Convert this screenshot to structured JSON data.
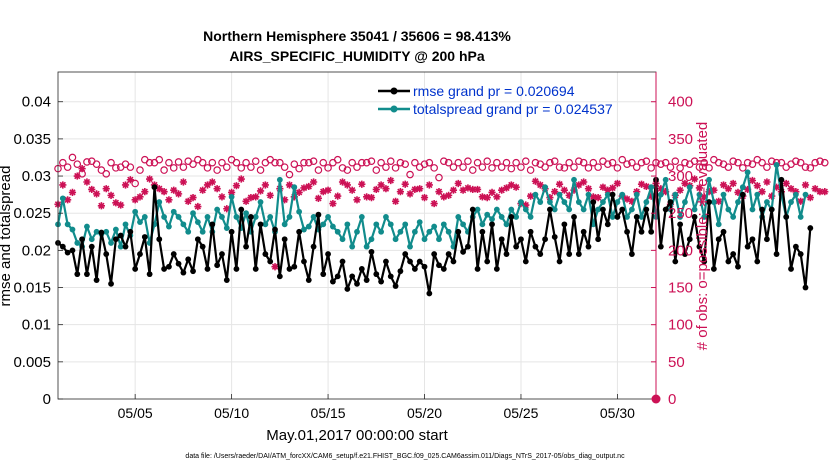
{
  "colors": {
    "rmse": "#000000",
    "spread": "#118c8c",
    "obs": "#cc1155",
    "legend_text": "#0033cc",
    "grid": "#e5e5e5"
  },
  "chart_data": {
    "type": "line",
    "title_line1": "Northern Hemisphere 35041 / 35606 = 98.413%",
    "title_line2": "AIRS_SPECIFIC_HUMIDITY @ 200 hPa",
    "xlabel": "May.01,2017 00:00:00 start",
    "ylabel": "rmse and totalspread",
    "ylabel2": "# of obs: o=possible; ∗=evaluated",
    "ylim": [
      0,
      0.044
    ],
    "ylim2": [
      0,
      440
    ],
    "xlim": [
      1.0,
      32.0
    ],
    "yticks": [
      0,
      0.005,
      0.01,
      0.015,
      0.02,
      0.025,
      0.03,
      0.035,
      0.04
    ],
    "ytick_labels": [
      "0",
      "0.005",
      "0.01",
      "0.015",
      "0.02",
      "0.025",
      "0.03",
      "0.035",
      "0.04"
    ],
    "yticks2": [
      0,
      50,
      100,
      150,
      200,
      250,
      300,
      350,
      400
    ],
    "ytick2_labels": [
      "0",
      "50",
      "100",
      "150",
      "200",
      "250",
      "300",
      "350",
      "400"
    ],
    "xticks": [
      5,
      10,
      15,
      20,
      25,
      30
    ],
    "xtick_labels": [
      "05/05",
      "05/10",
      "05/15",
      "05/20",
      "05/25",
      "05/30"
    ],
    "legend_placement": "top-right",
    "x_start": 1.0,
    "x_step": 0.25,
    "series": [
      {
        "name": "rmse grand pr = 0.020694",
        "values": [
          0.021,
          0.0205,
          0.0197,
          0.02,
          0.0168,
          0.0215,
          0.0168,
          0.0205,
          0.016,
          0.0224,
          0.0195,
          0.0155,
          0.0215,
          0.022,
          0.0205,
          0.0225,
          0.0175,
          0.0195,
          0.0218,
          0.0168,
          0.0285,
          0.0215,
          0.0175,
          0.0178,
          0.0195,
          0.0182,
          0.017,
          0.0188,
          0.0172,
          0.0215,
          0.0205,
          0.0175,
          0.0235,
          0.018,
          0.0195,
          0.016,
          0.0225,
          0.0175,
          0.0255,
          0.0205,
          0.0245,
          0.0175,
          0.0235,
          0.0195,
          0.0185,
          0.0228,
          0.0165,
          0.0215,
          0.0175,
          0.0178,
          0.0225,
          0.0185,
          0.016,
          0.0205,
          0.0248,
          0.0168,
          0.0195,
          0.0158,
          0.0165,
          0.0185,
          0.0148,
          0.0165,
          0.0155,
          0.0175,
          0.016,
          0.0198,
          0.0168,
          0.0158,
          0.0185,
          0.0165,
          0.0152,
          0.0172,
          0.0195,
          0.0185,
          0.0175,
          0.0185,
          0.0178,
          0.0142,
          0.0195,
          0.018,
          0.0175,
          0.0195,
          0.0185,
          0.0225,
          0.0198,
          0.0205,
          0.0255,
          0.0175,
          0.0225,
          0.0185,
          0.0235,
          0.0175,
          0.0215,
          0.0195,
          0.0245,
          0.0205,
          0.0215,
          0.0185,
          0.0225,
          0.0205,
          0.0195,
          0.0215,
          0.0255,
          0.0218,
          0.0185,
          0.0235,
          0.0195,
          0.0245,
          0.0195,
          0.0225,
          0.0205,
          0.0265,
          0.0215,
          0.0255,
          0.0235,
          0.0275,
          0.0245,
          0.0255,
          0.0225,
          0.0195,
          0.0245,
          0.0225,
          0.0255,
          0.0225,
          0.0295,
          0.0205,
          0.0255,
          0.0265,
          0.0185,
          0.0235,
          0.0195,
          0.0215,
          0.0245,
          0.0205,
          0.0185,
          0.0265,
          0.0175,
          0.0215,
          0.0225,
          0.0185,
          0.0195,
          0.0178,
          0.0275,
          0.0205,
          0.0215,
          0.0185,
          0.0255,
          0.0215,
          0.0255,
          0.0195,
          0.0295,
          0.0245,
          0.0175,
          0.0205,
          0.0195,
          0.015,
          0.023
        ]
      },
      {
        "name": "totalspread grand pr = 0.024537",
        "values": [
          0.0235,
          0.027,
          0.0235,
          0.0228,
          0.021,
          0.0205,
          0.0232,
          0.0215,
          0.0225,
          0.0222,
          0.0225,
          0.021,
          0.0228,
          0.0205,
          0.0235,
          0.022,
          0.0252,
          0.0238,
          0.0245,
          0.021,
          0.0235,
          0.0265,
          0.0245,
          0.0232,
          0.0252,
          0.0245,
          0.0235,
          0.0225,
          0.025,
          0.0238,
          0.0225,
          0.0245,
          0.0225,
          0.0255,
          0.0245,
          0.023,
          0.0272,
          0.0245,
          0.023,
          0.025,
          0.0225,
          0.0245,
          0.0265,
          0.0235,
          0.0245,
          0.0225,
          0.0295,
          0.0235,
          0.0245,
          0.0285,
          0.0252,
          0.0228,
          0.0232,
          0.0245,
          0.0228,
          0.0235,
          0.0245,
          0.0232,
          0.0225,
          0.0215,
          0.0235,
          0.0205,
          0.0225,
          0.0245,
          0.0205,
          0.0215,
          0.0235,
          0.0225,
          0.0245,
          0.0235,
          0.0215,
          0.0225,
          0.0235,
          0.0205,
          0.0225,
          0.0238,
          0.0215,
          0.0225,
          0.0232,
          0.0215,
          0.0235,
          0.0225,
          0.0205,
          0.0245,
          0.0235,
          0.0225,
          0.0245,
          0.0255,
          0.0235,
          0.0248,
          0.0242,
          0.0255,
          0.0245,
          0.0235,
          0.0255,
          0.0245,
          0.0265,
          0.0255,
          0.0245,
          0.0275,
          0.0265,
          0.0285,
          0.0265,
          0.0255,
          0.0275,
          0.0265,
          0.0255,
          0.0295,
          0.0265,
          0.0255,
          0.0275,
          0.0235,
          0.0255,
          0.0265,
          0.0275,
          0.0245,
          0.0265,
          0.0275,
          0.0245,
          0.0255,
          0.0275,
          0.0245,
          0.0265,
          0.0285,
          0.0245,
          0.0275,
          0.0295,
          0.0255,
          0.0275,
          0.0245,
          0.0265,
          0.0285,
          0.0255,
          0.0275,
          0.0245,
          0.0295,
          0.0265,
          0.0235,
          0.0275,
          0.0255,
          0.0245,
          0.0265,
          0.0285,
          0.0305,
          0.0255,
          0.0275,
          0.0245,
          0.0265,
          0.0255,
          0.0315,
          0.0275,
          0.0245,
          0.0265,
          0.0275,
          0.0245,
          0.0275
        ]
      },
      {
        "name": "obs possible",
        "values": [
          310,
          318,
          312,
          325,
          316,
          303,
          319,
          320,
          316,
          308,
          303,
          318,
          311,
          312,
          316,
          312,
          290,
          308,
          322,
          318,
          318,
          322,
          308,
          318,
          311,
          319,
          312,
          320,
          316,
          322,
          318,
          311,
          318,
          308,
          318,
          312,
          322,
          318,
          311,
          318,
          312,
          320,
          308,
          318,
          322,
          318,
          318,
          312,
          302,
          316,
          310,
          318,
          318,
          320,
          308,
          318,
          311,
          318,
          322,
          311,
          308,
          318,
          312,
          318,
          318,
          320,
          308,
          318,
          312,
          320,
          311,
          318,
          316,
          302,
          318,
          312,
          316,
          318,
          311,
          298,
          320,
          318,
          312,
          318,
          312,
          320,
          308,
          318,
          312,
          320,
          311,
          318,
          312,
          318,
          310,
          318,
          312,
          320,
          308,
          318,
          316,
          312,
          318,
          320,
          312,
          311,
          318,
          312,
          320,
          318,
          311,
          318,
          312,
          320,
          316,
          318,
          311,
          322,
          316,
          318,
          312,
          318,
          320,
          311,
          318,
          316,
          318,
          312,
          320,
          311,
          318,
          316,
          320,
          312,
          318,
          311,
          322,
          318,
          316,
          312,
          320,
          318,
          311,
          318,
          316,
          322,
          318,
          312,
          320,
          318,
          318,
          312,
          316,
          320,
          318,
          312,
          311,
          318,
          320,
          318
        ]
      },
      {
        "name": "obs evaluated",
        "values": [
          262,
          288,
          268,
          278,
          300,
          310,
          292,
          282,
          276,
          260,
          283,
          274,
          264,
          261,
          288,
          295,
          268,
          272,
          279,
          296,
          288,
          283,
          279,
          268,
          281,
          276,
          292,
          266,
          271,
          259,
          281,
          288,
          292,
          283,
          272,
          256,
          278,
          287,
          296,
          266,
          271,
          272,
          280,
          288,
          274,
          178,
          283,
          268,
          288,
          272,
          278,
          284,
          286,
          292,
          270,
          279,
          281,
          263,
          273,
          292,
          288,
          281,
          268,
          289,
          272,
          271,
          282,
          288,
          283,
          294,
          266,
          279,
          289,
          276,
          282,
          283,
          271,
          288,
          263,
          279,
          272,
          274,
          281,
          290,
          281,
          284,
          282,
          282,
          272,
          271,
          278,
          272,
          281,
          284,
          288,
          285,
          263,
          261,
          273,
          293,
          288,
          283,
          271,
          279,
          289,
          281,
          274,
          281,
          288,
          292,
          283,
          272,
          271,
          285,
          281,
          284,
          290,
          273,
          269,
          266,
          279,
          289,
          286,
          273,
          290,
          283,
          279,
          262,
          274,
          281,
          290,
          287,
          296,
          284,
          272,
          279,
          281,
          266,
          288,
          283,
          290,
          278,
          273,
          282,
          294,
          287,
          279,
          292,
          273,
          285,
          279,
          290,
          283,
          279,
          266,
          288,
          271,
          283,
          279,
          279
        ]
      }
    ]
  },
  "footer": "data file: /Users/raeder/DAI/ATM_forcXX/CAM6_setup/f.e21.FHIST_BGC.f09_025.CAM6assim.011/Diags_NTrS_2017-05/obs_diag_output.nc"
}
